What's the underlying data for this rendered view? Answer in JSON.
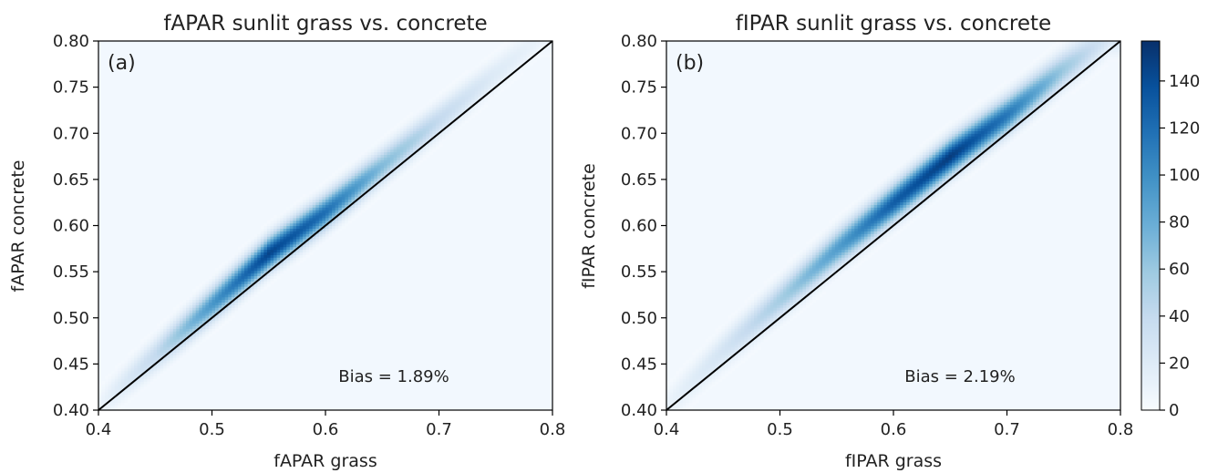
{
  "chart_data": [
    {
      "type": "heatmap",
      "panel_label": "(a)",
      "title": "fAPAR sunlit grass vs. concrete",
      "xlabel": "fAPAR grass",
      "ylabel": "fAPAR concrete",
      "xlim": [
        0.4,
        0.8
      ],
      "ylim": [
        0.4,
        0.8
      ],
      "x_ticks": [
        "0.4",
        "0.5",
        "0.6",
        "0.7",
        "0.8"
      ],
      "y_ticks": [
        "0.40",
        "0.45",
        "0.50",
        "0.55",
        "0.60",
        "0.65",
        "0.70",
        "0.75",
        "0.80"
      ],
      "annotation": "Bias = 1.89%",
      "reference_line": "1:1",
      "density_ridge": [
        {
          "x": 0.4,
          "y": 0.405,
          "density": 8
        },
        {
          "x": 0.45,
          "y": 0.46,
          "density": 40
        },
        {
          "x": 0.5,
          "y": 0.515,
          "density": 95
        },
        {
          "x": 0.55,
          "y": 0.57,
          "density": 145
        },
        {
          "x": 0.6,
          "y": 0.615,
          "density": 120
        },
        {
          "x": 0.65,
          "y": 0.665,
          "density": 70
        },
        {
          "x": 0.7,
          "y": 0.715,
          "density": 40
        },
        {
          "x": 0.75,
          "y": 0.765,
          "density": 20
        },
        {
          "x": 0.79,
          "y": 0.805,
          "density": 10
        }
      ],
      "spread": 0.012
    },
    {
      "type": "heatmap",
      "panel_label": "(b)",
      "title": "fIPAR sunlit grass vs. concrete",
      "xlabel": "fIPAR grass",
      "ylabel": "fIPAR concrete",
      "xlim": [
        0.4,
        0.8
      ],
      "ylim": [
        0.4,
        0.8
      ],
      "x_ticks": [
        "0.4",
        "0.5",
        "0.6",
        "0.7",
        "0.8"
      ],
      "y_ticks": [
        "0.40",
        "0.45",
        "0.50",
        "0.55",
        "0.60",
        "0.65",
        "0.70",
        "0.75",
        "0.80"
      ],
      "annotation": "Bias = 2.19%",
      "reference_line": "1:1",
      "density_ridge": [
        {
          "x": 0.4,
          "y": 0.405,
          "density": 10
        },
        {
          "x": 0.45,
          "y": 0.465,
          "density": 28
        },
        {
          "x": 0.5,
          "y": 0.52,
          "density": 55
        },
        {
          "x": 0.55,
          "y": 0.575,
          "density": 90
        },
        {
          "x": 0.6,
          "y": 0.625,
          "density": 130
        },
        {
          "x": 0.65,
          "y": 0.675,
          "density": 150
        },
        {
          "x": 0.7,
          "y": 0.72,
          "density": 115
        },
        {
          "x": 0.75,
          "y": 0.77,
          "density": 60
        },
        {
          "x": 0.79,
          "y": 0.805,
          "density": 25
        }
      ],
      "spread": 0.013
    }
  ],
  "colorbar": {
    "min": 0,
    "max": 157,
    "ticks": [
      "0",
      "20",
      "40",
      "60",
      "80",
      "100",
      "120",
      "140"
    ],
    "colors": [
      "#f7fbff",
      "#deebf7",
      "#c6dbef",
      "#9ecae1",
      "#6baed6",
      "#4292c6",
      "#2171b5",
      "#08519c",
      "#08306b"
    ]
  }
}
